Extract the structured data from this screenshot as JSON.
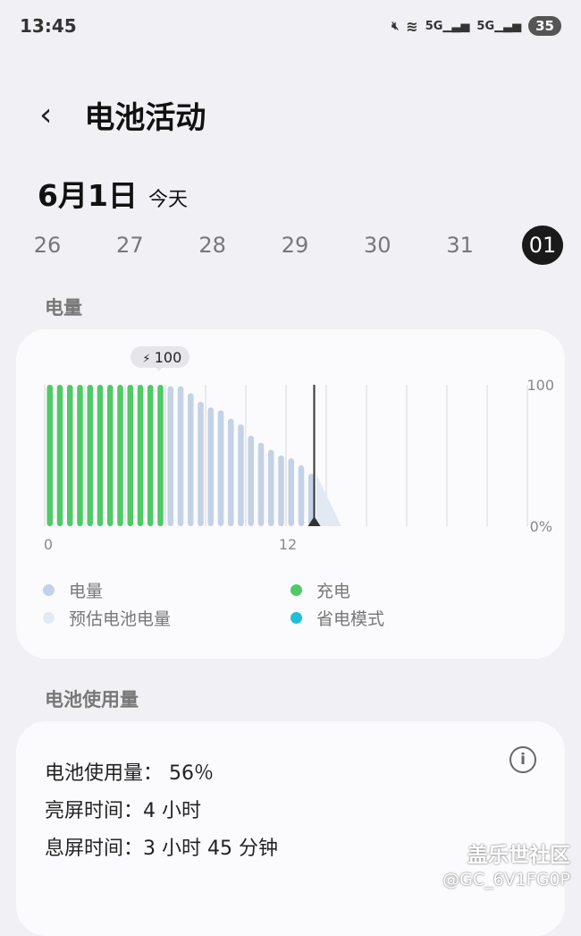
{
  "status_bar": {
    "time": "13:45",
    "battery": "35",
    "icons": [
      "mute-icon",
      "wifi-icon",
      "5g-signal-icon",
      "5g-signal-icon"
    ],
    "net1": "5G",
    "net2": "5G"
  },
  "header": {
    "title": "电池活动"
  },
  "date": {
    "label": "6月1日",
    "sub": "今天"
  },
  "days": [
    "26",
    "27",
    "28",
    "29",
    "30",
    "31",
    "01"
  ],
  "selected_day": "01",
  "battery_section": {
    "title": "电量"
  },
  "chart_data": {
    "type": "bar",
    "x_ticks": [
      "0",
      "12"
    ],
    "y_ticks": [
      "100",
      "0%"
    ],
    "xlim": [
      0,
      24
    ],
    "ylim": [
      0,
      100
    ],
    "charge_badge": "100",
    "bar_interval_hours": 0.5,
    "charging_values": [
      100,
      100,
      100,
      100,
      100,
      100,
      100,
      100,
      100,
      100,
      100,
      100
    ],
    "level_values": [
      99,
      99,
      94,
      88,
      84,
      82,
      76,
      72,
      64,
      59,
      54,
      50,
      48,
      43,
      37
    ],
    "estimated": {
      "from": [
        13.5,
        37
      ],
      "to": [
        14.75,
        0
      ]
    },
    "current_time_hours": 13.4,
    "colors": {
      "level": "#c3d2e6",
      "charging": "#4fca66",
      "estimated": "#e3e9f2",
      "power_saving": "#1fbfd6"
    },
    "grid": "vertical"
  },
  "legend": [
    {
      "label": "电量",
      "color": "#c3d2e6"
    },
    {
      "label": "充电",
      "color": "#4fca66"
    },
    {
      "label": "预估电池电量",
      "color": "#e3e9f2"
    },
    {
      "label": "省电模式",
      "color": "#1fbfd6"
    }
  ],
  "usage_section": {
    "title": "电池使用量",
    "lines": [
      "电池使用量： 56％",
      "亮屏时间：4 小时",
      "息屏时间：3 小时 45 分钟"
    ]
  },
  "watermark": {
    "line1": "盖乐世社区",
    "line2": "@GC_6V1FG0P"
  }
}
